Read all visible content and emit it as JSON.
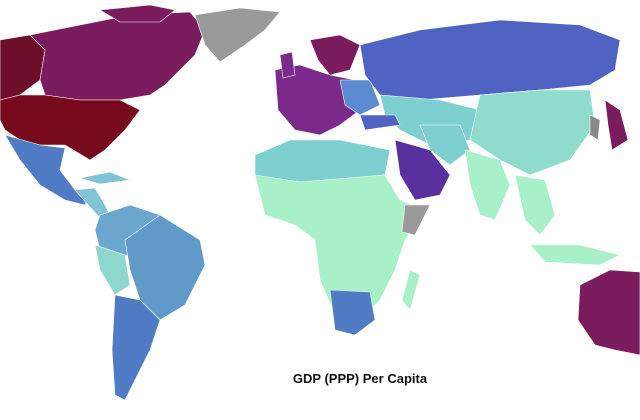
{
  "map": {
    "title": "GDP (PPP) Per Capita"
  }
}
